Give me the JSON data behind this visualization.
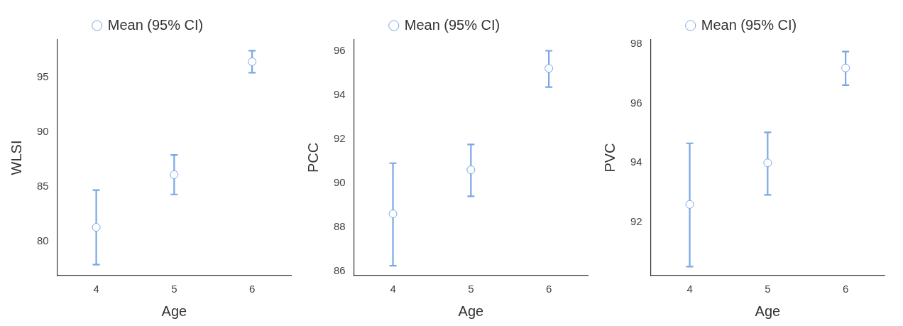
{
  "chart_data": [
    {
      "type": "scatter",
      "xlabel": "Age",
      "ylabel": "WLSI",
      "categories": [
        "4",
        "5",
        "6"
      ],
      "ylim": [
        76.9,
        98.4
      ],
      "yticks": [
        80,
        85,
        90,
        95
      ],
      "legend": "top",
      "marker": "circle",
      "grid": false,
      "series": [
        {
          "name": "Mean (95% CI)",
          "color": "#7aa6e8",
          "values": [
            81.3,
            86.1,
            96.4
          ],
          "errors": [
            [
              77.9,
              84.7
            ],
            [
              84.3,
              87.9
            ],
            [
              95.4,
              97.4
            ]
          ]
        }
      ]
    },
    {
      "type": "scatter",
      "xlabel": "Age",
      "ylabel": "PCC",
      "categories": [
        "4",
        "5",
        "6"
      ],
      "ylim": [
        85.8,
        96.5
      ],
      "yticks": [
        86,
        88,
        90,
        92,
        94,
        96
      ],
      "legend": "top",
      "marker": "circle",
      "grid": false,
      "series": [
        {
          "name": "Mean (95% CI)",
          "color": "#7aa6e8",
          "values": [
            88.6,
            90.6,
            95.2
          ],
          "errors": [
            [
              86.25,
              90.9
            ],
            [
              89.4,
              91.75
            ],
            [
              94.35,
              96.0
            ]
          ]
        }
      ]
    },
    {
      "type": "scatter",
      "xlabel": "Age",
      "ylabel": "PVC",
      "categories": [
        "4",
        "5",
        "6"
      ],
      "ylim": [
        90.2,
        98.15
      ],
      "yticks": [
        92,
        94,
        96,
        98
      ],
      "legend": "top",
      "marker": "circle",
      "grid": false,
      "series": [
        {
          "name": "Mean (95% CI)",
          "color": "#7aa6e8",
          "values": [
            92.6,
            94.0,
            97.2
          ],
          "errors": [
            [
              90.5,
              94.66
            ],
            [
              92.92,
              95.03
            ],
            [
              96.62,
              97.75
            ]
          ]
        }
      ]
    }
  ]
}
